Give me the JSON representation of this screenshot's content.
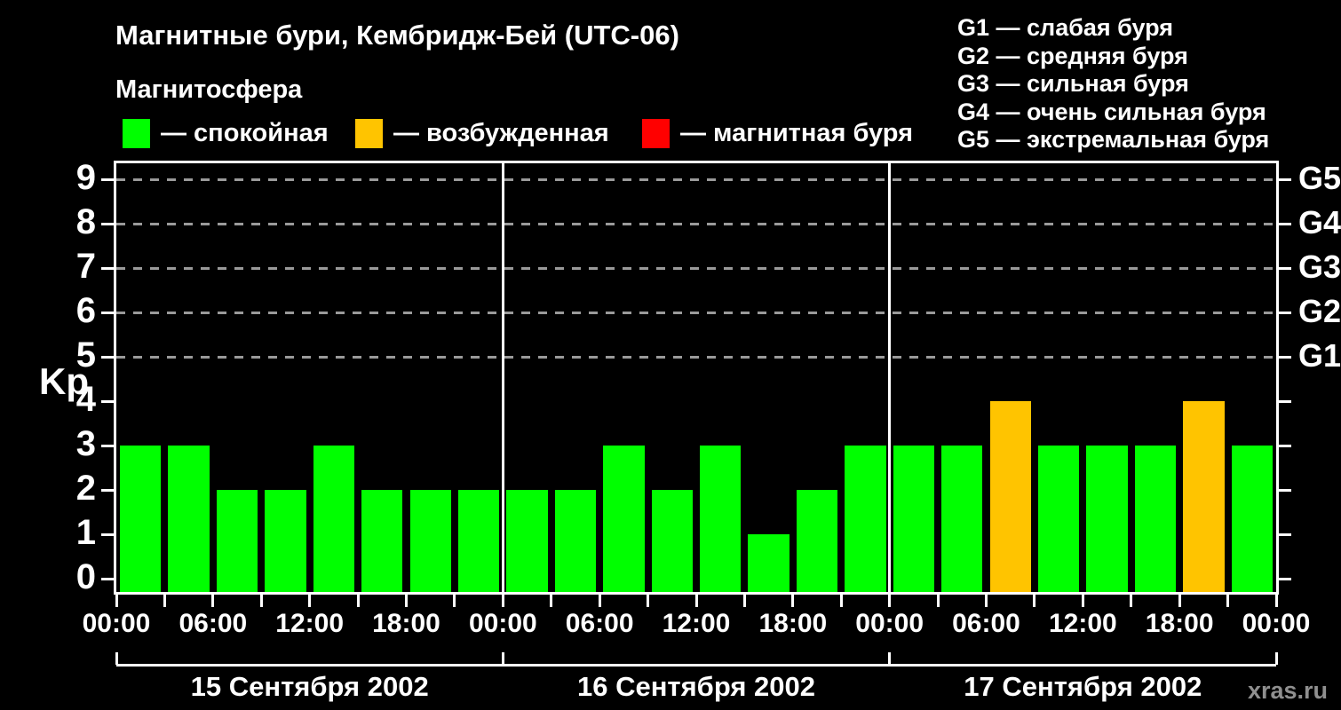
{
  "title": "Магнитные бури, Кембридж-Бей (UTC-06)",
  "subtitle": "Магнитосфера",
  "legend": {
    "items": [
      {
        "name": "quiet",
        "label": "— спокойная",
        "color": "#00ff00"
      },
      {
        "name": "active",
        "label": "— возбужденная",
        "color": "#ffc400"
      },
      {
        "name": "storm",
        "label": "— магнитная буря",
        "color": "#ff0000"
      }
    ]
  },
  "storm_scale_legend": {
    "items": [
      "G1 — слабая буря",
      "G2 — средняя буря",
      "G3 — сильная буря",
      "G4 — очень сильная буря",
      "G5 — экстремальная буря"
    ]
  },
  "watermark": "xras.ru",
  "chart_data": {
    "type": "bar",
    "title": "Магнитные бури, Кембридж-Бей (UTC-06)",
    "ylabel": "Kp",
    "ylim": [
      0,
      9
    ],
    "y_ticks": [
      0,
      1,
      2,
      3,
      4,
      5,
      6,
      7,
      8,
      9
    ],
    "gridlines_at_kp": [
      5,
      6,
      7,
      8,
      9
    ],
    "grid": "dashed horizontal at G-storm levels only",
    "legend_position": "top",
    "right_axis_labels": [
      {
        "kp": 5,
        "label": "G1"
      },
      {
        "kp": 6,
        "label": "G2"
      },
      {
        "kp": 7,
        "label": "G3"
      },
      {
        "kp": 8,
        "label": "G4"
      },
      {
        "kp": 9,
        "label": "G5"
      }
    ],
    "x_tick_labels": [
      "00:00",
      "06:00",
      "12:00",
      "18:00",
      "00:00",
      "06:00",
      "12:00",
      "18:00",
      "00:00",
      "06:00",
      "12:00",
      "18:00",
      "00:00"
    ],
    "bar_interval_hours": 3,
    "days": [
      {
        "date": "15 Сентября 2002",
        "values": [
          3,
          3,
          2,
          2,
          3,
          2,
          2,
          2
        ]
      },
      {
        "date": "16 Сентября 2002",
        "values": [
          2,
          2,
          3,
          2,
          3,
          1,
          2,
          3
        ]
      },
      {
        "date": "17 Сентября 2002",
        "values": [
          3,
          3,
          4,
          3,
          3,
          3,
          4,
          3
        ]
      }
    ],
    "bar_colors": {
      "quiet": "#00ff00",
      "active": "#ffc400",
      "storm": "#ff0000"
    },
    "color_thresholds": {
      "quiet_max_kp": 3,
      "active_max_kp": 5
    }
  }
}
